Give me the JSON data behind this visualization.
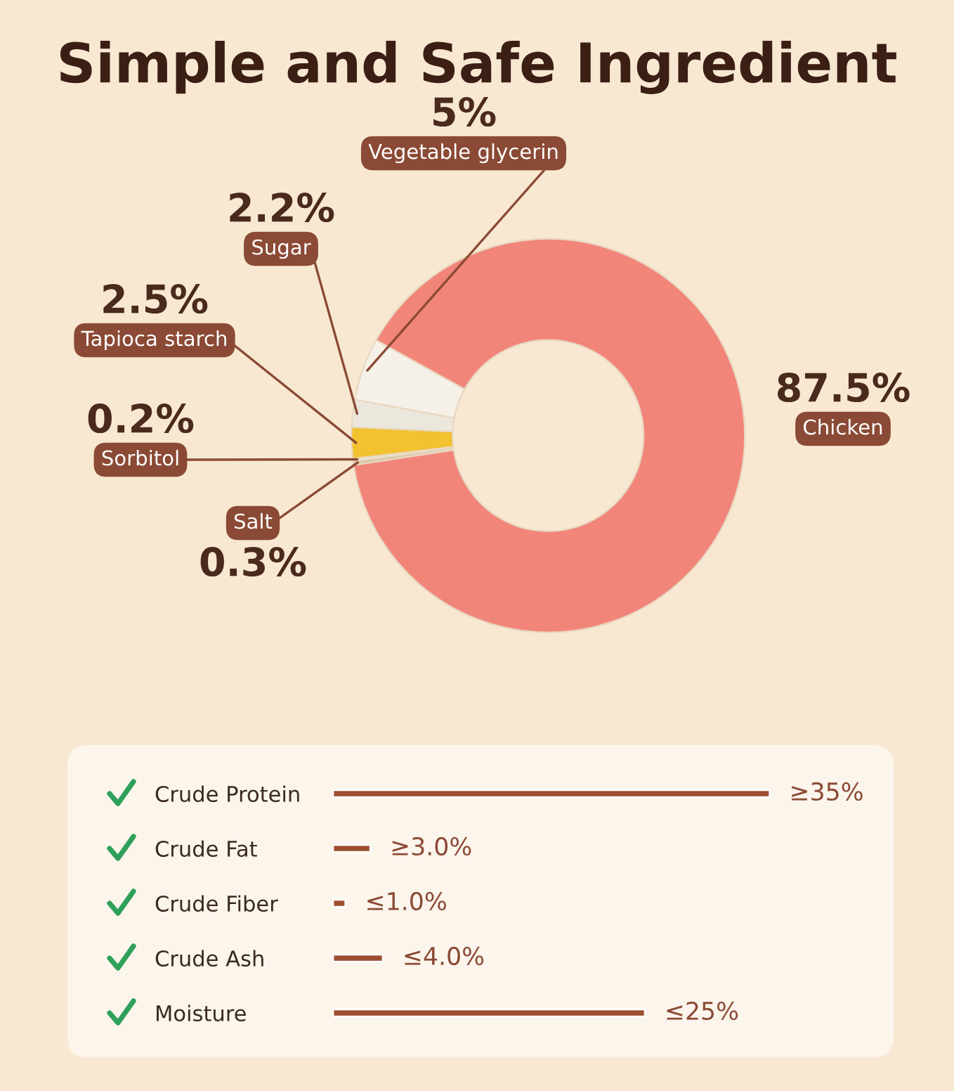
{
  "chart_data": [
    {
      "type": "donut",
      "title": "Simple and Safe Ingredient",
      "categories": [
        "Chicken",
        "Salt",
        "Sorbitol",
        "Tapioca starch",
        "Sugar",
        "Vegetable glycerin"
      ],
      "values": [
        87.5,
        0.3,
        0.2,
        2.5,
        2.2,
        5
      ],
      "colors": [
        "#f2857a",
        "#d9c3a5",
        "#f4efe6",
        "#f2c230",
        "#ece7dc",
        "#f6f1e8"
      ],
      "value_labels": [
        "87.5%",
        "0.3%",
        "0.2%",
        "2.5%",
        "2.2%",
        "5%"
      ]
    },
    {
      "type": "bar",
      "orientation": "horizontal",
      "categories": [
        "Crude Protein",
        "Crude Fat",
        "Crude Fiber",
        "Crude Ash",
        "Moisture"
      ],
      "values": [
        35,
        3.0,
        1.0,
        4.0,
        25
      ],
      "value_labels": [
        "≥35%",
        "≥3.0%",
        "≤1.0%",
        "≤4.0%",
        "≤25%"
      ],
      "color": "#9c4f30",
      "tick_labels": "y"
    }
  ]
}
